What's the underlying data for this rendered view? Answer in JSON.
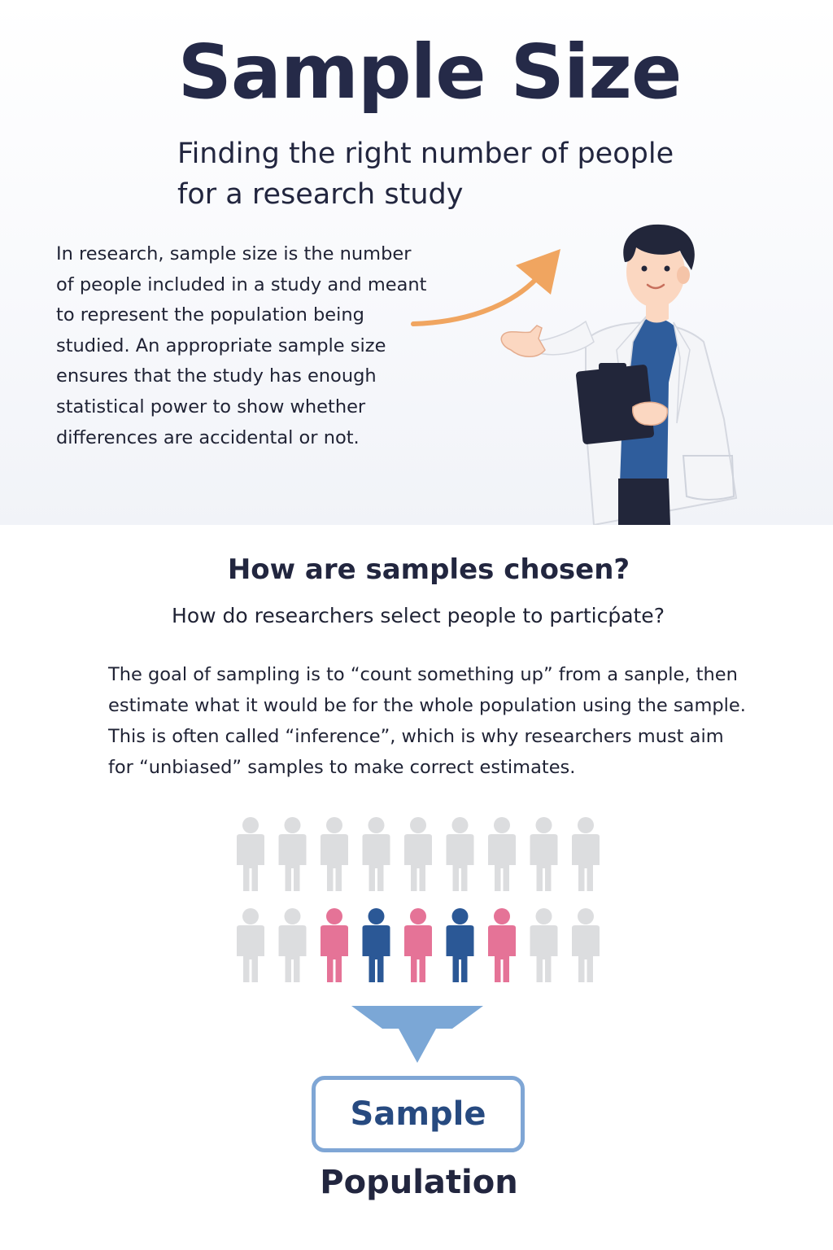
{
  "header": {
    "title": "Sample Size",
    "subtitle_line1": "Finding the right number of people",
    "subtitle_line2": "for a research study"
  },
  "intro": {
    "text": "In research, sample size is the number of people included in a study and meant to represent the population being studied. An appropriate sample size ensures that the study has enough statistical power to show whether differences are accidental or not."
  },
  "section": {
    "heading": "How are samples chosen?",
    "subheading": "How do researchers select people to particṕate?",
    "body": "The goal of sampling is to “count something up” from a sanple, then estimate what it would be for the whole population using the sample. This is often called “inference”, which is why researchers must aim for “unbiased” samples to make correct estimates."
  },
  "diagram": {
    "population_grid": {
      "rows": 2,
      "columns": 9,
      "highlighted_row2": [
        "grey",
        "grey",
        "pink",
        "blue",
        "pink",
        "blue",
        "pink",
        "grey",
        "grey"
      ]
    },
    "sample_label": "Sample",
    "population_label": "Population"
  },
  "colors": {
    "title": "#252a48",
    "grey_person": "#dcdddf",
    "pink_person": "#e57397",
    "blue_person": "#2b5896",
    "arrow_orange": "#f0a560",
    "arrow_blue": "#7ba7d6",
    "box_border": "#7fa6d5",
    "sample_text": "#274a80"
  },
  "icons": {
    "growth_arrow": "curved-arrow-icon",
    "scientist": "scientist-illustration",
    "person": "person-icon",
    "funnel_arrow": "down-arrow-icon"
  }
}
